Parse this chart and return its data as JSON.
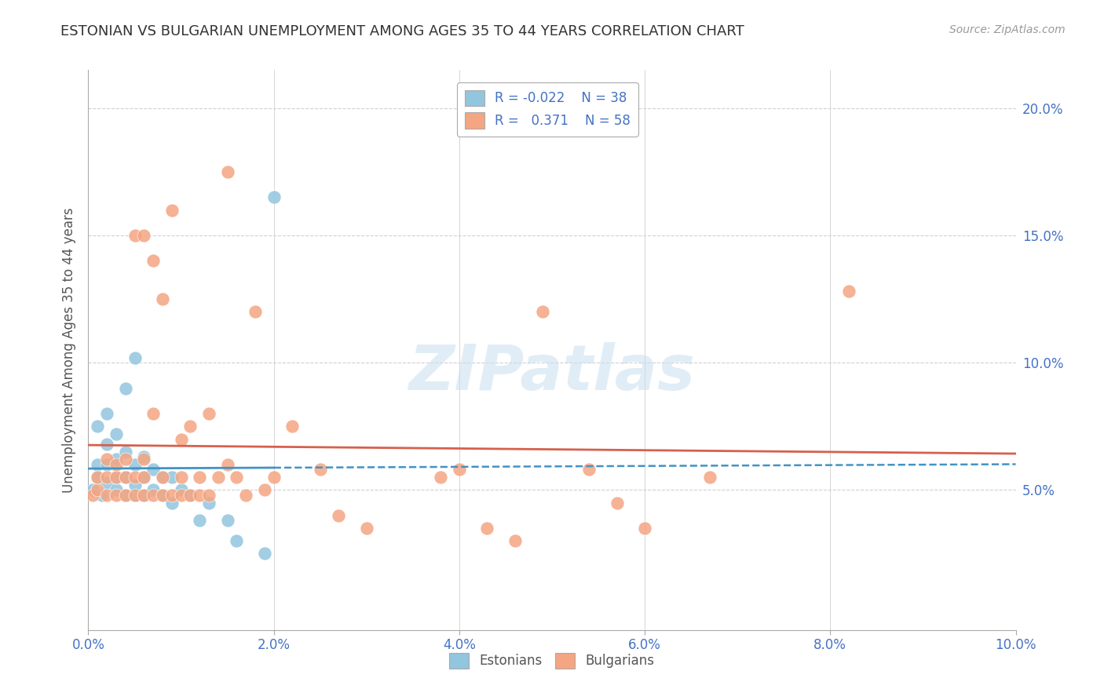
{
  "title": "ESTONIAN VS BULGARIAN UNEMPLOYMENT AMONG AGES 35 TO 44 YEARS CORRELATION CHART",
  "source": "Source: ZipAtlas.com",
  "ylabel": "Unemployment Among Ages 35 to 44 years",
  "xlim": [
    0.0,
    0.1
  ],
  "ylim": [
    -0.005,
    0.215
  ],
  "estonian_color": "#92c5de",
  "bulgarian_color": "#f4a582",
  "estonian_line_color": "#4393c3",
  "bulgarian_line_color": "#d6604d",
  "legend_estonian_R": "-0.022",
  "legend_estonian_N": "38",
  "legend_bulgarian_R": "0.371",
  "legend_bulgarian_N": "58",
  "estonian_x": [
    0.0005,
    0.001,
    0.001,
    0.001,
    0.0015,
    0.002,
    0.002,
    0.002,
    0.002,
    0.003,
    0.003,
    0.003,
    0.003,
    0.004,
    0.004,
    0.004,
    0.004,
    0.005,
    0.005,
    0.005,
    0.005,
    0.006,
    0.006,
    0.006,
    0.007,
    0.007,
    0.008,
    0.008,
    0.009,
    0.009,
    0.01,
    0.011,
    0.012,
    0.013,
    0.015,
    0.016,
    0.019,
    0.02
  ],
  "estonian_y": [
    0.05,
    0.06,
    0.075,
    0.055,
    0.048,
    0.053,
    0.06,
    0.068,
    0.08,
    0.05,
    0.055,
    0.062,
    0.072,
    0.048,
    0.055,
    0.065,
    0.09,
    0.048,
    0.052,
    0.06,
    0.102,
    0.048,
    0.055,
    0.063,
    0.05,
    0.058,
    0.048,
    0.055,
    0.045,
    0.055,
    0.05,
    0.048,
    0.038,
    0.045,
    0.038,
    0.03,
    0.025,
    0.165
  ],
  "bulgarian_x": [
    0.0005,
    0.001,
    0.001,
    0.002,
    0.002,
    0.002,
    0.003,
    0.003,
    0.003,
    0.004,
    0.004,
    0.004,
    0.005,
    0.005,
    0.005,
    0.006,
    0.006,
    0.006,
    0.006,
    0.007,
    0.007,
    0.007,
    0.008,
    0.008,
    0.008,
    0.009,
    0.009,
    0.01,
    0.01,
    0.01,
    0.011,
    0.011,
    0.012,
    0.012,
    0.013,
    0.013,
    0.014,
    0.015,
    0.015,
    0.016,
    0.017,
    0.018,
    0.019,
    0.02,
    0.022,
    0.025,
    0.027,
    0.03,
    0.038,
    0.04,
    0.043,
    0.046,
    0.049,
    0.054,
    0.057,
    0.06,
    0.067,
    0.082
  ],
  "bulgarian_y": [
    0.048,
    0.05,
    0.055,
    0.048,
    0.055,
    0.062,
    0.048,
    0.055,
    0.06,
    0.048,
    0.055,
    0.062,
    0.048,
    0.055,
    0.15,
    0.048,
    0.055,
    0.062,
    0.15,
    0.048,
    0.08,
    0.14,
    0.048,
    0.055,
    0.125,
    0.048,
    0.16,
    0.048,
    0.055,
    0.07,
    0.048,
    0.075,
    0.048,
    0.055,
    0.048,
    0.08,
    0.055,
    0.06,
    0.175,
    0.055,
    0.048,
    0.12,
    0.05,
    0.055,
    0.075,
    0.058,
    0.04,
    0.035,
    0.055,
    0.058,
    0.035,
    0.03,
    0.12,
    0.058,
    0.045,
    0.035,
    0.055,
    0.128
  ],
  "watermark_text": "ZIPatlas",
  "background_color": "#ffffff",
  "grid_color": "#d0d0d0",
  "spine_color": "#aaaaaa"
}
